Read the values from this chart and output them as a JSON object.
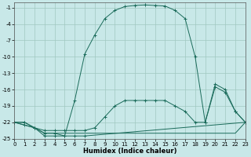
{
  "xlabel": "Humidex (Indice chaleur)",
  "background_color": "#c8e8e8",
  "grid_color": "#a0c8c0",
  "line_color": "#1a6b5a",
  "xlim": [
    0,
    23
  ],
  "ylim": [
    -25,
    0
  ],
  "xticks": [
    0,
    1,
    2,
    3,
    4,
    5,
    6,
    7,
    8,
    9,
    10,
    11,
    12,
    13,
    14,
    15,
    16,
    17,
    18,
    19,
    20,
    21,
    22,
    23
  ],
  "yticks": [
    -25,
    -22,
    -19,
    -16,
    -13,
    -10,
    -7,
    -4,
    -1
  ],
  "curve_arch_x": [
    0,
    1,
    2,
    3,
    4,
    5,
    6,
    7,
    8,
    9,
    10,
    11,
    12,
    13,
    14,
    15,
    16,
    17,
    18,
    19,
    20,
    21,
    22,
    23
  ],
  "curve_arch_y": [
    -22,
    -22,
    -23,
    -24,
    -24,
    -24.5,
    -18,
    -9.5,
    -6,
    -3,
    -1.5,
    -0.8,
    -0.6,
    -0.5,
    -0.6,
    -0.7,
    -1.5,
    -3,
    -10,
    -22,
    -15.5,
    -16.5,
    -20,
    -22
  ],
  "curve_mid_x": [
    0,
    1,
    2,
    3,
    4,
    5,
    6,
    7,
    8,
    9,
    10,
    11,
    12,
    13,
    14,
    15,
    16,
    17,
    18,
    19,
    20,
    21,
    22,
    23
  ],
  "curve_mid_y": [
    -22,
    -22,
    -23,
    -23.5,
    -23.5,
    -23.5,
    -23.5,
    -23.5,
    -23,
    -21,
    -19,
    -18,
    -18,
    -18,
    -18,
    -18,
    -19,
    -20,
    -22,
    -22,
    -15,
    -16,
    -20,
    -22
  ],
  "curve_low1_x": [
    0,
    1,
    2,
    3,
    4,
    5,
    6,
    7,
    8,
    9,
    10,
    11,
    12,
    13,
    14,
    15,
    16,
    17,
    18,
    19,
    20,
    21,
    22,
    23
  ],
  "curve_low1_y": [
    -22,
    -22.5,
    -23,
    -24,
    -24,
    -24,
    -24,
    -24,
    -24,
    -24,
    -24,
    -24,
    -24,
    -24,
    -24,
    -24,
    -24,
    -24,
    -24,
    -24,
    -24,
    -24,
    -24,
    -22
  ],
  "curve_low2_x": [
    0,
    1,
    2,
    3,
    4,
    5,
    6,
    7,
    23
  ],
  "curve_low2_y": [
    -22,
    -22.5,
    -23,
    -24.5,
    -24.5,
    -24.5,
    -24.5,
    -24.5,
    -22
  ]
}
